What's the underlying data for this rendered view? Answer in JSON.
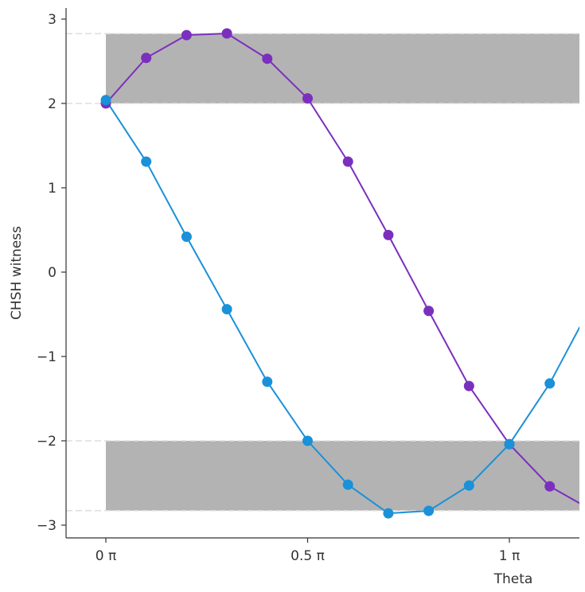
{
  "chart_data": {
    "type": "line",
    "title": "",
    "xlabel": "Theta",
    "ylabel": "CHSH witness",
    "xlim": [
      -0.1,
      1.18
    ],
    "ylim": [
      -3.15,
      3.15
    ],
    "xticks": [
      {
        "value": 0,
        "label": "0 π"
      },
      {
        "value": 0.5,
        "label": "0.5 π"
      },
      {
        "value": 1,
        "label": "1 π"
      }
    ],
    "yticks": [
      {
        "value": 3,
        "label": "3"
      },
      {
        "value": 2,
        "label": "2"
      },
      {
        "value": 1,
        "label": "1"
      },
      {
        "value": 0,
        "label": "0"
      },
      {
        "value": -1,
        "label": "−1"
      },
      {
        "value": -2,
        "label": "−2"
      },
      {
        "value": -3,
        "label": "−3"
      }
    ],
    "grid": false,
    "bands": [
      {
        "y_from": 2,
        "y_to": 2.828,
        "x_from": 0,
        "x_to": 1.18,
        "color": "#b3b3b3"
      },
      {
        "y_from": -2.828,
        "y_to": -2,
        "x_from": 0,
        "x_to": 1.18,
        "color": "#b3b3b3"
      }
    ],
    "reference_lines": [
      2.828,
      2,
      -2,
      -2.828
    ],
    "series": [
      {
        "color": "#7b2fbe",
        "x": [
          0,
          0.1,
          0.2,
          0.3,
          0.4,
          0.5,
          0.6,
          0.7,
          0.8,
          0.9,
          1.0,
          1.1,
          1.2
        ],
        "y": [
          2.0,
          2.54,
          2.81,
          2.83,
          2.53,
          2.06,
          1.31,
          0.44,
          -0.46,
          -1.35,
          -2.04,
          -2.54,
          -2.81
        ]
      },
      {
        "color": "#1a91d8",
        "x": [
          0,
          0.1,
          0.2,
          0.3,
          0.4,
          0.5,
          0.6,
          0.7,
          0.8,
          0.9,
          1.0,
          1.1,
          1.2
        ],
        "y": [
          2.04,
          1.31,
          0.42,
          -0.44,
          -1.3,
          -2.0,
          -2.52,
          -2.86,
          -2.83,
          -2.53,
          -2.04,
          -1.32,
          -0.42
        ]
      }
    ]
  }
}
